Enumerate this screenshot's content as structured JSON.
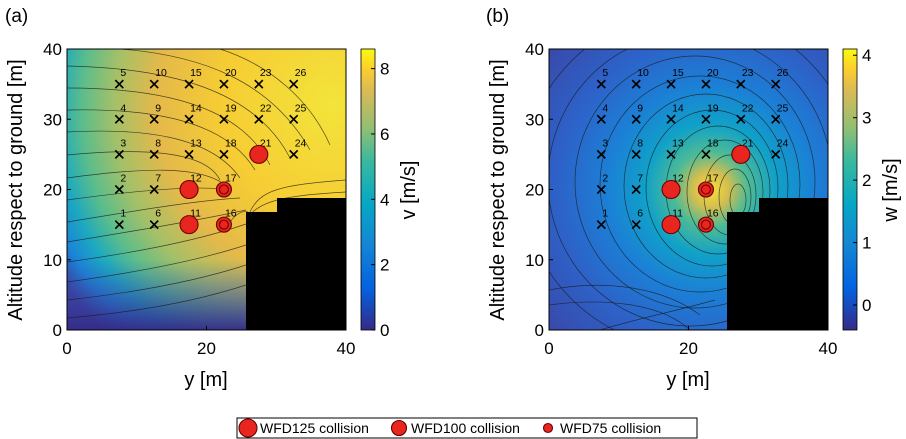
{
  "chart_data": [
    {
      "type": "heatmap",
      "panel_label": "(a)",
      "xlabel": "y [m]",
      "ylabel": "Altitude respect to ground [m]",
      "xlim": [
        0,
        40
      ],
      "ylim": [
        0,
        40
      ],
      "xticks": [
        0,
        20,
        40
      ],
      "yticks": [
        0,
        10,
        20,
        30,
        40
      ],
      "colorbar": {
        "label": "v [m/s]",
        "range": [
          0,
          8.6
        ],
        "ticks": [
          0,
          2,
          4,
          6,
          8
        ]
      },
      "colormap": "parula",
      "contour_lines": true,
      "points": [
        {
          "id": "1",
          "y": 7.5,
          "z": 15
        },
        {
          "id": "2",
          "y": 7.5,
          "z": 20
        },
        {
          "id": "3",
          "y": 7.5,
          "z": 25
        },
        {
          "id": "4",
          "y": 7.5,
          "z": 30
        },
        {
          "id": "5",
          "y": 7.5,
          "z": 35
        },
        {
          "id": "6",
          "y": 12.5,
          "z": 15
        },
        {
          "id": "7",
          "y": 12.5,
          "z": 20
        },
        {
          "id": "8",
          "y": 12.5,
          "z": 25
        },
        {
          "id": "9",
          "y": 12.5,
          "z": 30
        },
        {
          "id": "10",
          "y": 12.5,
          "z": 35
        },
        {
          "id": "11",
          "y": 17.5,
          "z": 15
        },
        {
          "id": "12",
          "y": 17.5,
          "z": 20
        },
        {
          "id": "13",
          "y": 17.5,
          "z": 25
        },
        {
          "id": "14",
          "y": 17.5,
          "z": 30
        },
        {
          "id": "15",
          "y": 17.5,
          "z": 35
        },
        {
          "id": "16",
          "y": 22.5,
          "z": 15
        },
        {
          "id": "17",
          "y": 22.5,
          "z": 20
        },
        {
          "id": "18",
          "y": 22.5,
          "z": 25
        },
        {
          "id": "19",
          "y": 22.5,
          "z": 30
        },
        {
          "id": "20",
          "y": 22.5,
          "z": 35
        },
        {
          "id": "21",
          "y": 27.5,
          "z": 25
        },
        {
          "id": "22",
          "y": 27.5,
          "z": 30
        },
        {
          "id": "23",
          "y": 27.5,
          "z": 35
        },
        {
          "id": "24",
          "y": 32.5,
          "z": 25
        },
        {
          "id": "25",
          "y": 32.5,
          "z": 30
        },
        {
          "id": "26",
          "y": 32.5,
          "z": 35
        }
      ],
      "collisions": [
        {
          "y": 17.5,
          "z": 15,
          "kind": "WFD125"
        },
        {
          "y": 17.5,
          "z": 20,
          "kind": "WFD125"
        },
        {
          "y": 27.5,
          "z": 25,
          "kind": "WFD125"
        },
        {
          "y": 22.5,
          "z": 20,
          "kind": "WFD100"
        },
        {
          "y": 22.5,
          "z": 20,
          "kind": "WFD75"
        },
        {
          "y": 22.5,
          "z": 15,
          "kind": "WFD100"
        },
        {
          "y": 22.5,
          "z": 15,
          "kind": "WFD75"
        }
      ]
    },
    {
      "type": "heatmap",
      "panel_label": "(b)",
      "xlabel": "y [m]",
      "ylabel": "Altitude respect to ground [m]",
      "xlim": [
        0,
        40
      ],
      "ylim": [
        0,
        40
      ],
      "xticks": [
        0,
        20,
        40
      ],
      "yticks": [
        0,
        10,
        20,
        30,
        40
      ],
      "colorbar": {
        "label": "w [m/s]",
        "range": [
          -0.4,
          4.1
        ],
        "ticks": [
          0,
          1,
          2,
          3,
          4
        ]
      },
      "colormap": "parula",
      "contour_lines": true,
      "points": [
        {
          "id": "1",
          "y": 7.5,
          "z": 15
        },
        {
          "id": "2",
          "y": 7.5,
          "z": 20
        },
        {
          "id": "3",
          "y": 7.5,
          "z": 25
        },
        {
          "id": "4",
          "y": 7.5,
          "z": 30
        },
        {
          "id": "5",
          "y": 7.5,
          "z": 35
        },
        {
          "id": "6",
          "y": 12.5,
          "z": 15
        },
        {
          "id": "7",
          "y": 12.5,
          "z": 20
        },
        {
          "id": "8",
          "y": 12.5,
          "z": 25
        },
        {
          "id": "9",
          "y": 12.5,
          "z": 30
        },
        {
          "id": "10",
          "y": 12.5,
          "z": 35
        },
        {
          "id": "11",
          "y": 17.5,
          "z": 15
        },
        {
          "id": "12",
          "y": 17.5,
          "z": 20
        },
        {
          "id": "13",
          "y": 17.5,
          "z": 25
        },
        {
          "id": "14",
          "y": 17.5,
          "z": 30
        },
        {
          "id": "15",
          "y": 17.5,
          "z": 35
        },
        {
          "id": "16",
          "y": 22.5,
          "z": 15
        },
        {
          "id": "17",
          "y": 22.5,
          "z": 20
        },
        {
          "id": "18",
          "y": 22.5,
          "z": 25
        },
        {
          "id": "19",
          "y": 22.5,
          "z": 30
        },
        {
          "id": "20",
          "y": 22.5,
          "z": 35
        },
        {
          "id": "21",
          "y": 27.5,
          "z": 25
        },
        {
          "id": "22",
          "y": 27.5,
          "z": 30
        },
        {
          "id": "23",
          "y": 27.5,
          "z": 35
        },
        {
          "id": "24",
          "y": 32.5,
          "z": 25
        },
        {
          "id": "25",
          "y": 32.5,
          "z": 30
        },
        {
          "id": "26",
          "y": 32.5,
          "z": 35
        }
      ],
      "collisions": [
        {
          "y": 17.5,
          "z": 15,
          "kind": "WFD125"
        },
        {
          "y": 17.5,
          "z": 20,
          "kind": "WFD125"
        },
        {
          "y": 27.5,
          "z": 25,
          "kind": "WFD125"
        },
        {
          "y": 22.5,
          "z": 20,
          "kind": "WFD100"
        },
        {
          "y": 22.5,
          "z": 20,
          "kind": "WFD75"
        },
        {
          "y": 22.5,
          "z": 15,
          "kind": "WFD100"
        },
        {
          "y": 22.5,
          "z": 15,
          "kind": "WFD75"
        }
      ]
    }
  ],
  "legend": {
    "position": "bottom-center",
    "entries": [
      {
        "label": "WFD125 collision",
        "kind": "WFD125"
      },
      {
        "label": "WFD100 collision",
        "kind": "WFD100"
      },
      {
        "label": "WFD75 collision",
        "kind": "WFD75"
      }
    ]
  },
  "colors": {
    "collision_fill": "#e8251f",
    "collision_stroke": "#6b0000",
    "building": "#000000",
    "marker": "#000000"
  }
}
